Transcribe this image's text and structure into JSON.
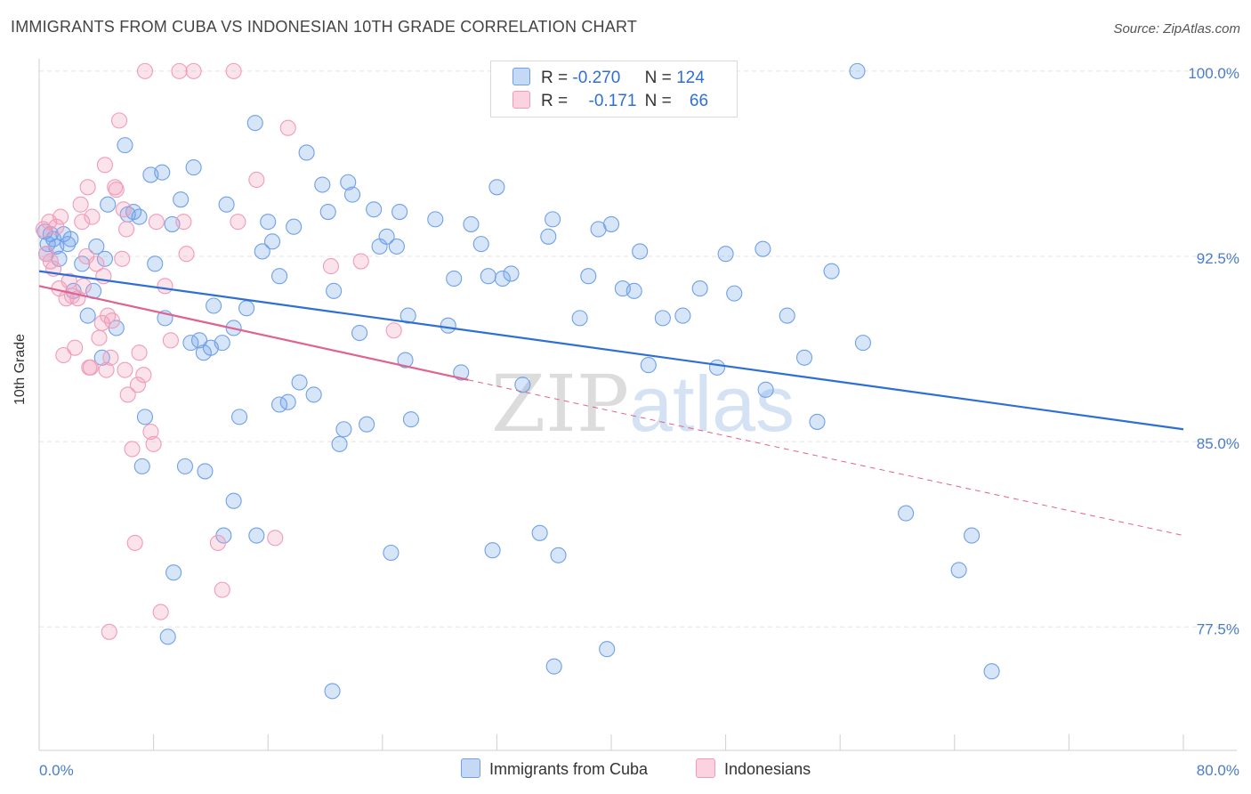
{
  "title": "IMMIGRANTS FROM CUBA VS INDONESIAN 10TH GRADE CORRELATION CHART",
  "source": "Source: ZipAtlas.com",
  "watermark": {
    "part1": "ZIP",
    "part2": "atlas"
  },
  "legend": {
    "rows": [
      {
        "r_label": "R =",
        "r_value": "-0.270",
        "n_label": "N =",
        "n_value": "124",
        "color": "#6fa0e8"
      },
      {
        "r_label": "R =",
        "r_value": "-0.171",
        "n_label": "N =",
        "n_value": "66",
        "color": "#f29bb8"
      }
    ]
  },
  "bottom_legend": [
    {
      "label": "Immigrants from Cuba",
      "color": "#6fa0e8"
    },
    {
      "label": "Indonesians",
      "color": "#f29bb8"
    }
  ],
  "chart_data": {
    "type": "scatter",
    "title": "IMMIGRANTS FROM CUBA VS INDONESIAN 10TH GRADE CORRELATION CHART",
    "xlabel": "",
    "ylabel": "10th Grade",
    "xlim": [
      0,
      80
    ],
    "ylim": [
      72.5,
      100.5
    ],
    "x_ticks": [
      0,
      80
    ],
    "x_tick_labels": [
      "0.0%",
      "80.0%"
    ],
    "y_ticks": [
      77.5,
      85.0,
      92.5,
      100.0
    ],
    "y_tick_labels": [
      "77.5%",
      "85.0%",
      "92.5%",
      "100.0%"
    ],
    "grid": true,
    "series": [
      {
        "name": "Immigrants from Cuba",
        "color": "#6fa0e8",
        "trend": {
          "x": [
            0,
            80
          ],
          "y": [
            91.9,
            85.5
          ],
          "style": "solid"
        },
        "points": [
          [
            0.4,
            93.5
          ],
          [
            0.5,
            92.6
          ],
          [
            0.6,
            93.0
          ],
          [
            0.8,
            93.4
          ],
          [
            1.0,
            93.2
          ],
          [
            1.2,
            92.9
          ],
          [
            1.4,
            92.4
          ],
          [
            1.7,
            93.4
          ],
          [
            2.0,
            93.0
          ],
          [
            2.2,
            93.2
          ],
          [
            2.4,
            91.1
          ],
          [
            3.0,
            92.2
          ],
          [
            3.4,
            90.1
          ],
          [
            3.8,
            91.1
          ],
          [
            4.0,
            92.9
          ],
          [
            4.4,
            88.4
          ],
          [
            4.6,
            92.4
          ],
          [
            4.8,
            94.6
          ],
          [
            5.4,
            89.6
          ],
          [
            6.0,
            97.0
          ],
          [
            6.2,
            94.2
          ],
          [
            6.6,
            94.3
          ],
          [
            7.0,
            94.1
          ],
          [
            7.4,
            86.0
          ],
          [
            7.8,
            95.8
          ],
          [
            8.1,
            92.2
          ],
          [
            8.6,
            95.9
          ],
          [
            8.8,
            90.0
          ],
          [
            9.3,
            93.8
          ],
          [
            9.9,
            94.8
          ],
          [
            10.2,
            84.0
          ],
          [
            10.6,
            89.0
          ],
          [
            10.8,
            96.1
          ],
          [
            11.2,
            89.1
          ],
          [
            11.6,
            83.8
          ],
          [
            12.0,
            88.8
          ],
          [
            12.2,
            90.5
          ],
          [
            12.8,
            89.0
          ],
          [
            13.1,
            94.6
          ],
          [
            13.6,
            89.6
          ],
          [
            14.0,
            86.0
          ],
          [
            14.5,
            90.4
          ],
          [
            15.1,
            97.9
          ],
          [
            15.6,
            92.7
          ],
          [
            16.0,
            93.9
          ],
          [
            16.3,
            93.1
          ],
          [
            16.8,
            91.7
          ],
          [
            17.4,
            86.6
          ],
          [
            17.8,
            93.7
          ],
          [
            18.2,
            87.4
          ],
          [
            18.7,
            96.7
          ],
          [
            19.2,
            86.9
          ],
          [
            19.8,
            95.4
          ],
          [
            20.2,
            94.3
          ],
          [
            20.6,
            91.1
          ],
          [
            21.0,
            84.9
          ],
          [
            21.6,
            95.5
          ],
          [
            21.9,
            95.0
          ],
          [
            22.4,
            89.4
          ],
          [
            22.9,
            85.7
          ],
          [
            23.4,
            94.4
          ],
          [
            23.8,
            92.9
          ],
          [
            24.3,
            93.3
          ],
          [
            24.6,
            80.5
          ],
          [
            25.0,
            92.9
          ],
          [
            25.2,
            94.3
          ],
          [
            25.6,
            88.3
          ],
          [
            25.8,
            90.1
          ],
          [
            26.0,
            85.9
          ],
          [
            27.7,
            94.0
          ],
          [
            28.6,
            89.7
          ],
          [
            29.0,
            91.6
          ],
          [
            29.5,
            87.8
          ],
          [
            30.2,
            93.8
          ],
          [
            30.9,
            93.0
          ],
          [
            31.4,
            91.7
          ],
          [
            31.7,
            80.6
          ],
          [
            32.0,
            95.3
          ],
          [
            32.4,
            91.6
          ],
          [
            33.0,
            91.8
          ],
          [
            33.8,
            87.3
          ],
          [
            35.0,
            81.3
          ],
          [
            35.6,
            93.3
          ],
          [
            35.9,
            94.0
          ],
          [
            36.0,
            75.9
          ],
          [
            36.3,
            80.4
          ],
          [
            37.8,
            90.0
          ],
          [
            38.4,
            91.7
          ],
          [
            39.1,
            93.6
          ],
          [
            39.7,
            76.6
          ],
          [
            40.0,
            93.8
          ],
          [
            40.8,
            91.2
          ],
          [
            41.6,
            91.1
          ],
          [
            42.0,
            92.7
          ],
          [
            42.6,
            88.1
          ],
          [
            43.6,
            90.0
          ],
          [
            45.0,
            90.1
          ],
          [
            46.2,
            91.2
          ],
          [
            47.4,
            88.0
          ],
          [
            48.0,
            92.6
          ],
          [
            48.6,
            91.0
          ],
          [
            50.6,
            92.8
          ],
          [
            50.8,
            87.1
          ],
          [
            52.3,
            90.1
          ],
          [
            53.5,
            88.4
          ],
          [
            54.4,
            85.8
          ],
          [
            55.4,
            91.9
          ],
          [
            57.2,
            100.0
          ],
          [
            57.6,
            89.0
          ],
          [
            60.6,
            82.1
          ],
          [
            64.3,
            79.8
          ],
          [
            65.2,
            81.2
          ],
          [
            66.6,
            75.7
          ],
          [
            16.8,
            86.5
          ],
          [
            21.3,
            85.5
          ],
          [
            13.6,
            82.6
          ],
          [
            12.9,
            81.2
          ],
          [
            11.5,
            88.6
          ],
          [
            9.4,
            79.7
          ],
          [
            9.0,
            77.1
          ],
          [
            7.2,
            84.0
          ],
          [
            20.5,
            74.9
          ],
          [
            15.2,
            81.2
          ]
        ]
      },
      {
        "name": "Indonesians",
        "color": "#f29bb8",
        "trend": {
          "x": [
            0,
            30
          ],
          "y": [
            91.3,
            87.5
          ],
          "style": "solid",
          "extension": {
            "x": [
              30,
              80
            ],
            "y": [
              87.5,
              81.2
            ],
            "style": "dashed"
          }
        },
        "points": [
          [
            0.3,
            93.6
          ],
          [
            0.5,
            92.6
          ],
          [
            0.7,
            93.9
          ],
          [
            0.8,
            92.3
          ],
          [
            1.0,
            92.0
          ],
          [
            1.2,
            93.7
          ],
          [
            1.4,
            91.2
          ],
          [
            1.5,
            94.1
          ],
          [
            1.7,
            88.5
          ],
          [
            1.9,
            90.8
          ],
          [
            2.1,
            91.5
          ],
          [
            2.3,
            90.9
          ],
          [
            2.5,
            88.8
          ],
          [
            2.7,
            90.8
          ],
          [
            2.9,
            94.6
          ],
          [
            3.0,
            93.9
          ],
          [
            3.1,
            91.3
          ],
          [
            3.3,
            92.5
          ],
          [
            3.4,
            95.3
          ],
          [
            3.5,
            88.0
          ],
          [
            3.6,
            88.0
          ],
          [
            3.7,
            94.1
          ],
          [
            4.0,
            92.2
          ],
          [
            4.2,
            89.2
          ],
          [
            4.4,
            89.8
          ],
          [
            4.5,
            91.7
          ],
          [
            4.6,
            96.2
          ],
          [
            4.7,
            87.9
          ],
          [
            4.8,
            90.1
          ],
          [
            4.9,
            77.3
          ],
          [
            5.0,
            88.4
          ],
          [
            5.1,
            89.9
          ],
          [
            5.3,
            95.3
          ],
          [
            5.4,
            95.2
          ],
          [
            5.6,
            98.0
          ],
          [
            5.8,
            92.4
          ],
          [
            5.9,
            94.4
          ],
          [
            6.0,
            87.9
          ],
          [
            6.1,
            93.6
          ],
          [
            6.2,
            86.9
          ],
          [
            6.5,
            84.7
          ],
          [
            6.7,
            80.9
          ],
          [
            6.9,
            87.3
          ],
          [
            7.0,
            88.6
          ],
          [
            7.3,
            87.7
          ],
          [
            7.4,
            100.0
          ],
          [
            7.8,
            85.4
          ],
          [
            8.0,
            84.9
          ],
          [
            8.2,
            93.9
          ],
          [
            8.5,
            78.1
          ],
          [
            8.8,
            91.3
          ],
          [
            9.2,
            89.1
          ],
          [
            9.8,
            100.0
          ],
          [
            10.1,
            93.9
          ],
          [
            10.3,
            92.6
          ],
          [
            10.8,
            100.0
          ],
          [
            12.5,
            80.9
          ],
          [
            12.8,
            79.0
          ],
          [
            13.6,
            100.0
          ],
          [
            13.9,
            93.9
          ],
          [
            15.2,
            95.6
          ],
          [
            16.5,
            81.1
          ],
          [
            17.4,
            97.7
          ],
          [
            20.4,
            92.1
          ],
          [
            22.5,
            92.3
          ],
          [
            24.8,
            89.5
          ]
        ]
      }
    ]
  }
}
